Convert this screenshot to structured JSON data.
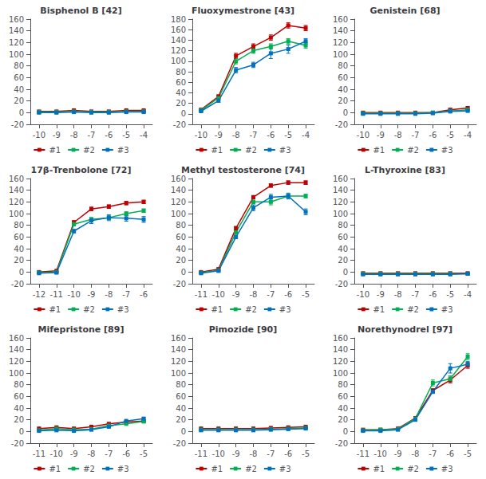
{
  "chart_data": [
    {
      "type": "line",
      "title": "Bisphenol B [42]",
      "marker": "square",
      "grid": false,
      "legend": "bottom",
      "x": [
        -10,
        -9,
        -8,
        -7,
        -6,
        -5,
        -4
      ],
      "xlim": [
        -10.5,
        -3.5
      ],
      "xticks": [
        -10,
        -9,
        -8,
        -7,
        -6,
        -5,
        -4
      ],
      "ylim": [
        -20,
        160
      ],
      "yticks": [
        -20,
        0,
        20,
        40,
        60,
        80,
        100,
        120,
        140,
        160
      ],
      "series": [
        {
          "name": "#1",
          "color": "#c00000",
          "values": [
            2,
            2,
            4,
            2,
            2,
            4,
            4
          ],
          "yerr": [
            1,
            1,
            1,
            1,
            1,
            1,
            1
          ]
        },
        {
          "name": "#2",
          "color": "#00b050",
          "values": [
            1,
            1,
            2,
            1,
            1,
            2,
            2
          ],
          "yerr": [
            1,
            1,
            1,
            1,
            1,
            1,
            1
          ]
        },
        {
          "name": "#3",
          "color": "#0070c0",
          "values": [
            0,
            0,
            1,
            0,
            0,
            1,
            1
          ],
          "yerr": [
            1,
            1,
            1,
            1,
            1,
            1,
            1
          ]
        }
      ]
    },
    {
      "type": "line",
      "title": "Fluoxymestrone [43]",
      "marker": "square",
      "grid": false,
      "legend": "bottom",
      "x": [
        -10,
        -9,
        -8,
        -7,
        -6,
        -5,
        -4
      ],
      "xlim": [
        -10.5,
        -3.5
      ],
      "xticks": [
        -10,
        -9,
        -8,
        -7,
        -6,
        -5,
        -4
      ],
      "ylim": [
        -20,
        180
      ],
      "yticks": [
        -20,
        0,
        20,
        40,
        60,
        80,
        100,
        120,
        140,
        160,
        180
      ],
      "series": [
        {
          "name": "#1",
          "color": "#c00000",
          "values": [
            8,
            33,
            110,
            128,
            145,
            168,
            163
          ],
          "yerr": [
            2,
            3,
            5,
            5,
            5,
            5,
            5
          ]
        },
        {
          "name": "#2",
          "color": "#00b050",
          "values": [
            7,
            30,
            100,
            120,
            128,
            138,
            130
          ],
          "yerr": [
            2,
            3,
            5,
            5,
            5,
            5,
            5
          ]
        },
        {
          "name": "#3",
          "color": "#0070c0",
          "values": [
            5,
            25,
            83,
            93,
            115,
            123,
            138
          ],
          "yerr": [
            2,
            3,
            5,
            5,
            10,
            8,
            5
          ]
        }
      ]
    },
    {
      "type": "line",
      "title": "Genistein [68]",
      "marker": "square",
      "grid": false,
      "legend": "bottom",
      "x": [
        -10,
        -9,
        -8,
        -7,
        -6,
        -5,
        -4
      ],
      "xlim": [
        -10.5,
        -3.5
      ],
      "xticks": [
        -10,
        -9,
        -8,
        -7,
        -6,
        -5,
        -4
      ],
      "ylim": [
        -20,
        160
      ],
      "yticks": [
        -20,
        0,
        20,
        40,
        60,
        80,
        100,
        120,
        140,
        160
      ],
      "series": [
        {
          "name": "#1",
          "color": "#c00000",
          "values": [
            0,
            0,
            0,
            0,
            0,
            5,
            8
          ],
          "yerr": [
            1,
            1,
            1,
            1,
            1,
            2,
            2
          ]
        },
        {
          "name": "#2",
          "color": "#00b050",
          "values": [
            -1,
            -1,
            -1,
            -1,
            0,
            3,
            5
          ],
          "yerr": [
            1,
            1,
            1,
            1,
            1,
            1,
            1
          ]
        },
        {
          "name": "#3",
          "color": "#0070c0",
          "values": [
            -2,
            -2,
            -2,
            -2,
            -1,
            2,
            3
          ],
          "yerr": [
            1,
            1,
            1,
            1,
            1,
            1,
            1
          ]
        }
      ]
    },
    {
      "type": "line",
      "title": "17β-Trenbolone [72]",
      "marker": "square",
      "grid": false,
      "legend": "bottom",
      "x": [
        -12,
        -11,
        -10,
        -9,
        -8,
        -7,
        -6
      ],
      "xlim": [
        -12.5,
        -5.5
      ],
      "xticks": [
        -12,
        -11,
        -10,
        -9,
        -8,
        -7,
        -6
      ],
      "ylim": [
        -20,
        160
      ],
      "yticks": [
        -20,
        0,
        20,
        40,
        60,
        80,
        100,
        120,
        140,
        160
      ],
      "series": [
        {
          "name": "#1",
          "color": "#c00000",
          "values": [
            0,
            2,
            85,
            108,
            112,
            118,
            120
          ],
          "yerr": [
            1,
            1,
            3,
            3,
            3,
            3,
            3
          ]
        },
        {
          "name": "#2",
          "color": "#00b050",
          "values": [
            -1,
            0,
            82,
            90,
            93,
            100,
            105
          ],
          "yerr": [
            1,
            1,
            3,
            3,
            3,
            3,
            3
          ]
        },
        {
          "name": "#3",
          "color": "#0070c0",
          "values": [
            -2,
            -1,
            70,
            88,
            93,
            92,
            90
          ],
          "yerr": [
            1,
            1,
            3,
            5,
            5,
            5,
            5
          ]
        }
      ]
    },
    {
      "type": "line",
      "title": "Methyl testosterone [74]",
      "marker": "square",
      "grid": false,
      "legend": "bottom",
      "x": [
        -11,
        -10,
        -9,
        -8,
        -7,
        -6,
        -5
      ],
      "xlim": [
        -11.5,
        -4.5
      ],
      "xticks": [
        -11,
        -10,
        -9,
        -8,
        -7,
        -6,
        -5
      ],
      "ylim": [
        -20,
        160
      ],
      "yticks": [
        -20,
        0,
        20,
        40,
        60,
        80,
        100,
        120,
        140,
        160
      ],
      "series": [
        {
          "name": "#1",
          "color": "#c00000",
          "values": [
            0,
            5,
            75,
            128,
            148,
            153,
            153
          ],
          "yerr": [
            1,
            2,
            3,
            3,
            3,
            3,
            3
          ]
        },
        {
          "name": "#2",
          "color": "#00b050",
          "values": [
            -1,
            3,
            68,
            120,
            120,
            130,
            130
          ],
          "yerr": [
            1,
            2,
            3,
            3,
            5,
            3,
            3
          ]
        },
        {
          "name": "#3",
          "color": "#0070c0",
          "values": [
            -2,
            2,
            60,
            110,
            128,
            130,
            103
          ],
          "yerr": [
            1,
            2,
            3,
            5,
            5,
            5,
            5
          ]
        }
      ]
    },
    {
      "type": "line",
      "title": "L-Thyroxine [83]",
      "marker": "square",
      "grid": false,
      "legend": "bottom",
      "x": [
        -10,
        -9,
        -8,
        -7,
        -6,
        -5,
        -4
      ],
      "xlim": [
        -10.5,
        -3.5
      ],
      "xticks": [
        -10,
        -9,
        -8,
        -7,
        -6,
        -5,
        -4
      ],
      "ylim": [
        -20,
        160
      ],
      "yticks": [
        -20,
        0,
        20,
        40,
        60,
        80,
        100,
        120,
        140,
        160
      ],
      "series": [
        {
          "name": "#1",
          "color": "#c00000",
          "values": [
            -2,
            -2,
            -2,
            -2,
            -2,
            -2,
            -2
          ],
          "yerr": [
            1,
            1,
            1,
            1,
            1,
            1,
            1
          ]
        },
        {
          "name": "#2",
          "color": "#00b050",
          "values": [
            -3,
            -3,
            -3,
            -3,
            -3,
            -3,
            -3
          ],
          "yerr": [
            1,
            1,
            1,
            1,
            1,
            1,
            1
          ]
        },
        {
          "name": "#3",
          "color": "#0070c0",
          "values": [
            -4,
            -4,
            -4,
            -4,
            -4,
            -4,
            -3
          ],
          "yerr": [
            1,
            1,
            1,
            1,
            1,
            1,
            1
          ]
        }
      ]
    },
    {
      "type": "line",
      "title": "Mifepristone [89]",
      "marker": "square",
      "grid": false,
      "legend": "bottom",
      "x": [
        -11,
        -10,
        -9,
        -8,
        -7,
        -6,
        -5
      ],
      "xlim": [
        -11.5,
        -4.5
      ],
      "xticks": [
        -11,
        -10,
        -9,
        -8,
        -7,
        -6,
        -5
      ],
      "ylim": [
        -20,
        160
      ],
      "yticks": [
        -20,
        0,
        20,
        40,
        60,
        80,
        100,
        120,
        140,
        160
      ],
      "series": [
        {
          "name": "#1",
          "color": "#c00000",
          "values": [
            5,
            7,
            5,
            8,
            13,
            16,
            18
          ],
          "yerr": [
            1,
            1,
            1,
            1,
            1,
            1,
            1
          ]
        },
        {
          "name": "#2",
          "color": "#00b050",
          "values": [
            2,
            5,
            3,
            4,
            10,
            13,
            17
          ],
          "yerr": [
            1,
            1,
            1,
            1,
            1,
            1,
            1
          ]
        },
        {
          "name": "#3",
          "color": "#0070c0",
          "values": [
            1,
            2,
            1,
            3,
            8,
            18,
            22
          ],
          "yerr": [
            1,
            1,
            1,
            1,
            1,
            1,
            2
          ]
        }
      ]
    },
    {
      "type": "line",
      "title": "Pimozide [90]",
      "marker": "square",
      "grid": false,
      "legend": "bottom",
      "x": [
        -11,
        -10,
        -9,
        -8,
        -7,
        -6,
        -5
      ],
      "xlim": [
        -11.5,
        -4.5
      ],
      "xticks": [
        -11,
        -10,
        -9,
        -8,
        -7,
        -6,
        -5
      ],
      "ylim": [
        -20,
        160
      ],
      "yticks": [
        -20,
        0,
        20,
        40,
        60,
        80,
        100,
        120,
        140,
        160
      ],
      "series": [
        {
          "name": "#1",
          "color": "#c00000",
          "values": [
            5,
            5,
            5,
            5,
            6,
            7,
            8
          ],
          "yerr": [
            1,
            1,
            1,
            1,
            1,
            1,
            1
          ]
        },
        {
          "name": "#2",
          "color": "#00b050",
          "values": [
            3,
            3,
            3,
            3,
            4,
            5,
            6
          ],
          "yerr": [
            1,
            1,
            1,
            1,
            1,
            1,
            1
          ]
        },
        {
          "name": "#3",
          "color": "#0070c0",
          "values": [
            2,
            2,
            2,
            2,
            3,
            4,
            5
          ],
          "yerr": [
            1,
            1,
            1,
            1,
            1,
            1,
            1
          ]
        }
      ]
    },
    {
      "type": "line",
      "title": "Norethynodrel [97]",
      "marker": "square",
      "grid": false,
      "legend": "bottom",
      "x": [
        -11,
        -10,
        -9,
        -8,
        -7,
        -6,
        -5
      ],
      "xlim": [
        -11.5,
        -4.5
      ],
      "xticks": [
        -11,
        -10,
        -9,
        -8,
        -7,
        -6,
        -5
      ],
      "ylim": [
        -20,
        160
      ],
      "yticks": [
        -20,
        0,
        20,
        40,
        60,
        80,
        100,
        120,
        140,
        160
      ],
      "series": [
        {
          "name": "#1",
          "color": "#c00000",
          "values": [
            3,
            3,
            5,
            23,
            70,
            88,
            113
          ],
          "yerr": [
            1,
            1,
            1,
            2,
            3,
            5,
            5
          ]
        },
        {
          "name": "#2",
          "color": "#00b050",
          "values": [
            2,
            3,
            4,
            22,
            83,
            90,
            128
          ],
          "yerr": [
            1,
            1,
            1,
            2,
            5,
            5,
            5
          ]
        },
        {
          "name": "#3",
          "color": "#0070c0",
          "values": [
            1,
            1,
            3,
            20,
            68,
            108,
            115
          ],
          "yerr": [
            1,
            1,
            1,
            2,
            3,
            8,
            5
          ]
        }
      ]
    }
  ]
}
